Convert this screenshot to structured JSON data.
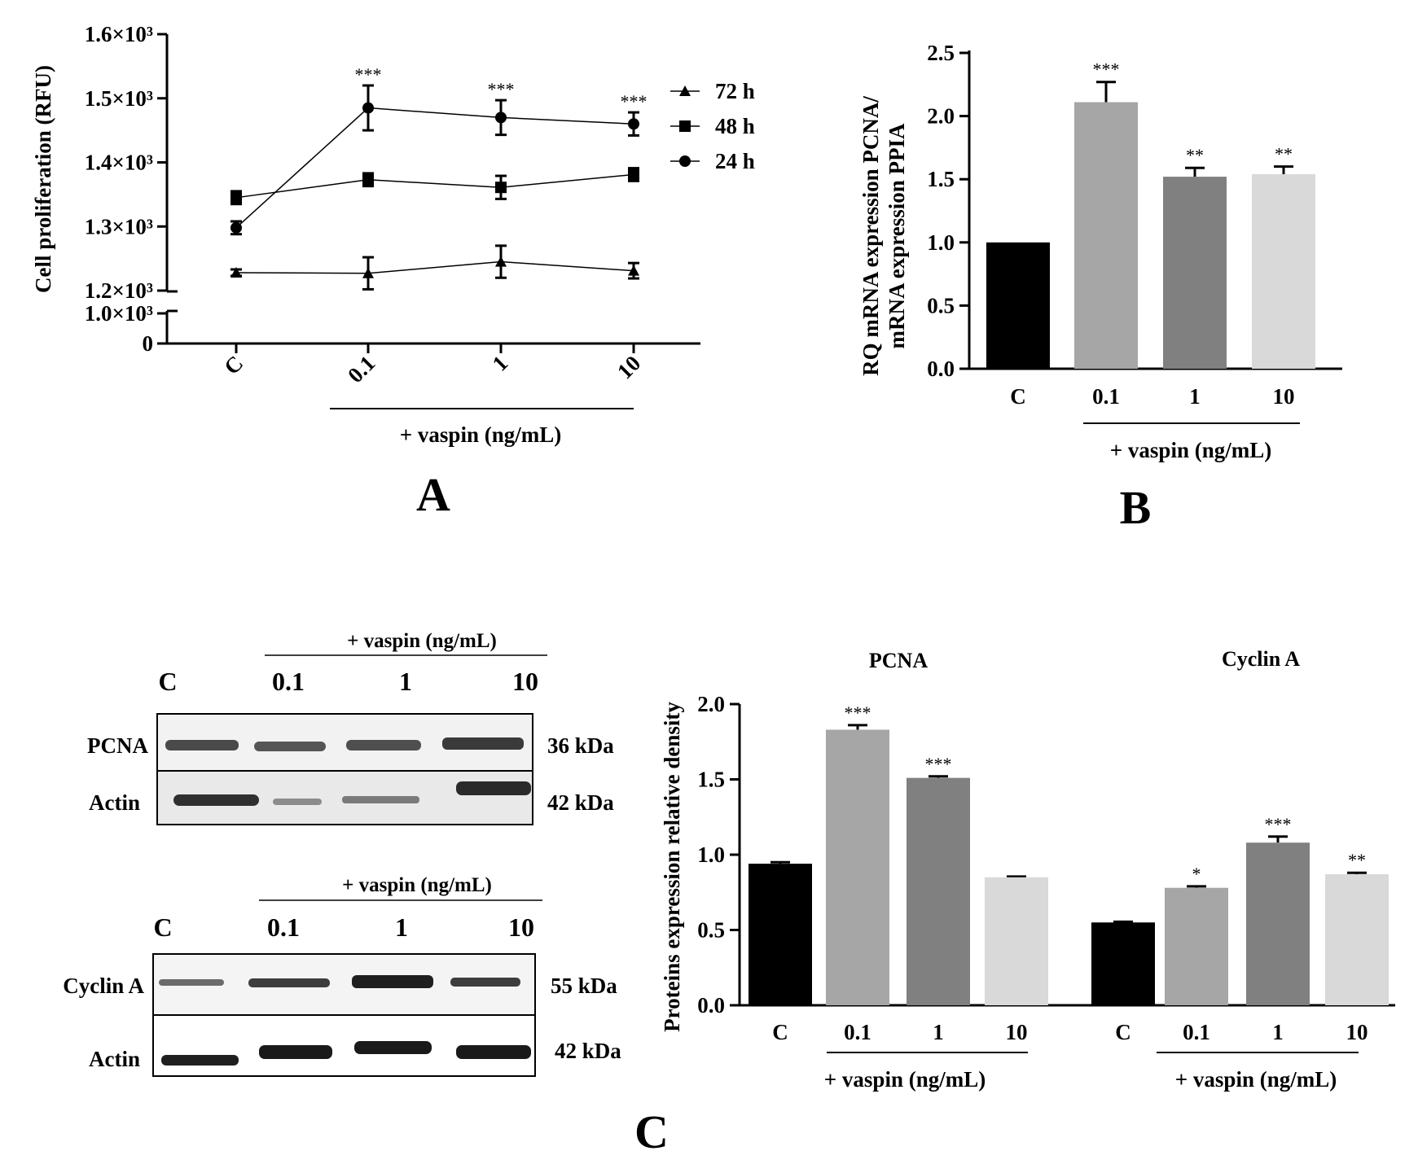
{
  "panels": {
    "A": {
      "label": "A",
      "chart_data": {
        "type": "line",
        "ylabel": "Cell proliferation (RFU)",
        "x_categories": [
          "C",
          "0.1",
          "1",
          "10"
        ],
        "xgroup_label": "+ vaspin (ng/mL)",
        "y_ticks": [
          "0",
          "1.0×10³",
          "1.2×10³",
          "1.3×10³",
          "1.4×10³",
          "1.5×10³",
          "1.6×10³"
        ],
        "y_break": true,
        "ylim": [
          1200,
          1600
        ],
        "legend_position": "right",
        "series": [
          {
            "name": "72 h",
            "marker": "triangle",
            "values": [
              1228,
              1227,
              1245,
              1231
            ],
            "errors": [
              5,
              25,
              25,
              12
            ],
            "sig": [
              "",
              "",
              "",
              ""
            ]
          },
          {
            "name": "48 h",
            "marker": "square",
            "values": [
              1345,
              1373,
              1361,
              1381
            ],
            "errors": [
              10,
              10,
              18,
              10
            ],
            "sig": [
              "",
              "",
              "",
              ""
            ]
          },
          {
            "name": "24 h",
            "marker": "circle",
            "values": [
              1298,
              1485,
              1470,
              1460
            ],
            "errors": [
              10,
              35,
              27,
              18
            ],
            "sig": [
              "",
              "***",
              "***",
              "***"
            ]
          }
        ]
      }
    },
    "B": {
      "label": "B",
      "chart_data": {
        "type": "bar",
        "ylabel_line1": "RQ mRNA expression PCNA/",
        "ylabel_line2": "mRNA expression PPIA",
        "categories": [
          "C",
          "0.1",
          "1",
          "10"
        ],
        "xgroup_label": "+ vaspin (ng/mL)",
        "values": [
          1.0,
          2.11,
          1.52,
          1.54
        ],
        "errors": [
          0.0,
          0.16,
          0.07,
          0.06
        ],
        "sig": [
          "",
          "***",
          "**",
          "**"
        ],
        "colors": [
          "#000000",
          "#a6a6a6",
          "#808080",
          "#d9d9d9"
        ],
        "ylim": [
          0,
          2.5
        ],
        "y_ticks": [
          "0.0",
          "0.5",
          "1.0",
          "1.5",
          "2.0",
          "2.5"
        ]
      }
    },
    "C": {
      "label": "C",
      "blots": [
        {
          "group_label": "+ vaspin (ng/mL)",
          "lanes": [
            "C",
            "0.1",
            "1",
            "10"
          ],
          "rows": [
            {
              "protein": "PCNA",
              "size": "36 kDa"
            },
            {
              "protein": "Actin",
              "size": "42 kDa"
            }
          ]
        },
        {
          "group_label": "+ vaspin (ng/mL)",
          "lanes": [
            "C",
            "0.1",
            "1",
            "10"
          ],
          "rows": [
            {
              "protein": "Cyclin A",
              "size": "55 kDa"
            },
            {
              "protein": "Actin",
              "size": "42 kDa"
            }
          ]
        }
      ],
      "chart_data": {
        "type": "bar",
        "ylabel": "Proteins expression relative density",
        "ylim": [
          0,
          2.0
        ],
        "y_ticks": [
          "0.0",
          "0.5",
          "1.0",
          "1.5",
          "2.0"
        ],
        "colors": [
          "#000000",
          "#a6a6a6",
          "#808080",
          "#d9d9d9"
        ],
        "groups": [
          {
            "title": "PCNA",
            "categories": [
              "C",
              "0.1",
              "1",
              "10"
            ],
            "xgroup_label": "+ vaspin (ng/mL)",
            "values": [
              0.94,
              1.83,
              1.51,
              0.85
            ],
            "errors": [
              0.01,
              0.03,
              0.01,
              0.005
            ],
            "sig": [
              "",
              "***",
              "***",
              ""
            ]
          },
          {
            "title": "Cyclin A",
            "categories": [
              "C",
              "0.1",
              "1",
              "10"
            ],
            "xgroup_label": "+ vaspin (ng/mL)",
            "values": [
              0.55,
              0.78,
              1.08,
              0.87
            ],
            "errors": [
              0.005,
              0.01,
              0.04,
              0.01
            ],
            "sig": [
              "",
              "*",
              "***",
              "**"
            ]
          }
        ]
      }
    }
  }
}
